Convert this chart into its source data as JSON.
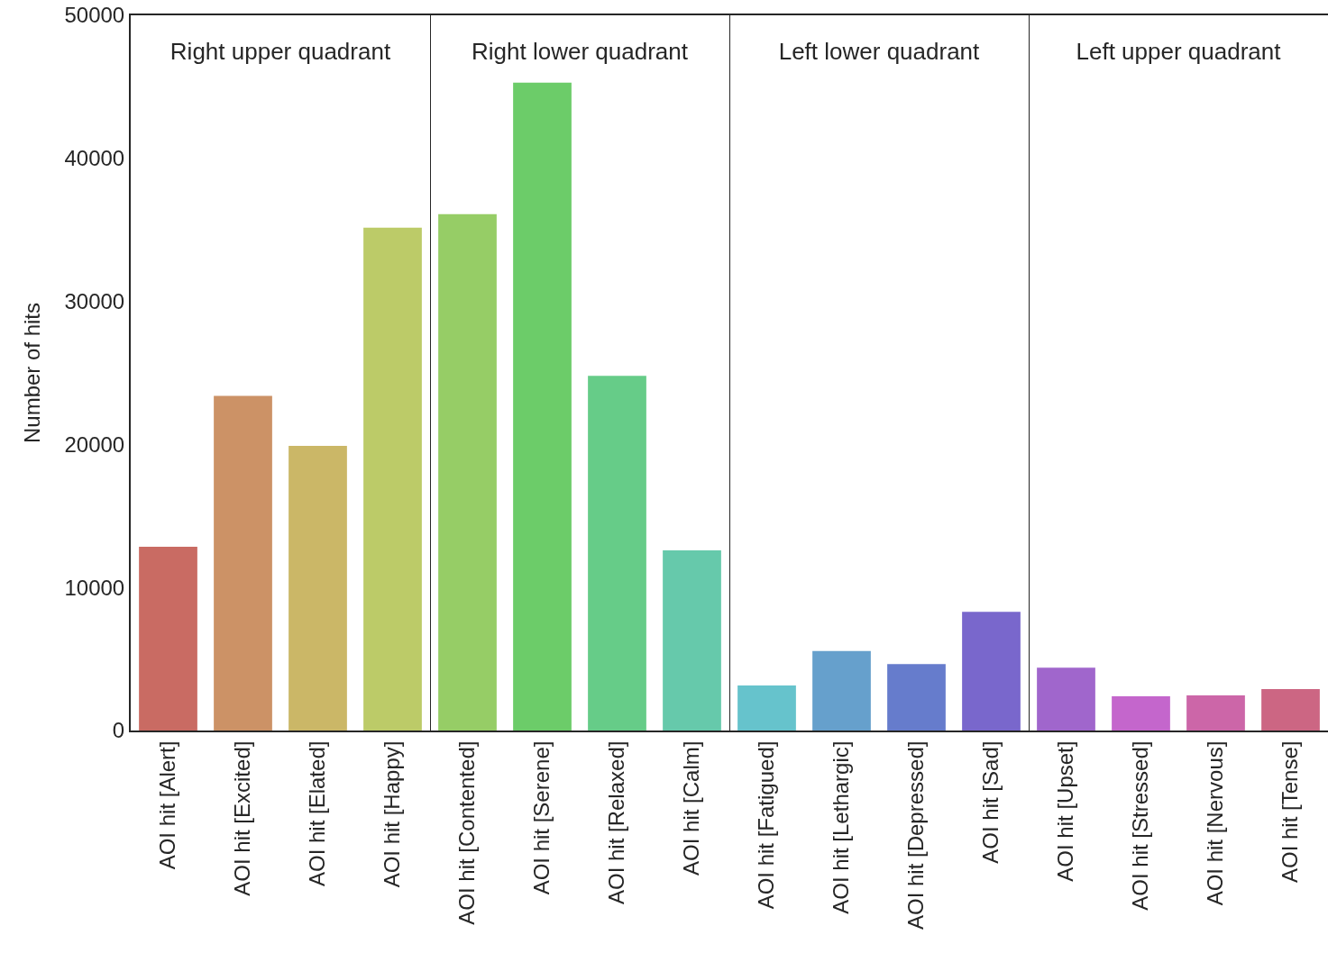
{
  "chart_data": [
    {
      "type": "bar",
      "title": "Right upper quadrant",
      "ylabel": "Number of hits",
      "categories": [
        "AOI hit [Alert]",
        "AOI hit [Excited]",
        "AOI hit [Elated]",
        "AOI hit [Happy]"
      ],
      "values": [
        12850,
        23400,
        19900,
        35150
      ],
      "colors": [
        "#c96b63",
        "#cc9266",
        "#cbb767",
        "#bccb68"
      ],
      "ylim": [
        0,
        50000
      ],
      "yticks": [
        0,
        10000,
        20000,
        30000,
        40000,
        50000
      ]
    },
    {
      "type": "bar",
      "title": "Right lower quadrant",
      "categories": [
        "AOI hit [Contented]",
        "AOI hit [Serene]",
        "AOI hit [Relaxed]",
        "AOI hit [Calm]"
      ],
      "values": [
        36100,
        45300,
        24800,
        12600
      ],
      "colors": [
        "#96cd66",
        "#6ccc69",
        "#66cc88",
        "#66c9ab"
      ],
      "ylim": [
        0,
        50000
      ],
      "yticks": [
        0,
        10000,
        20000,
        30000,
        40000,
        50000
      ],
      "tick_labels": "x"
    },
    {
      "type": "bar",
      "title": "Left lower quadrant",
      "categories": [
        "AOI hit [Fatigued]",
        "AOI hit [Lethargic]",
        "AOI hit [Depressed]",
        "AOI hit [Sad]"
      ],
      "values": [
        3150,
        5550,
        4650,
        8300
      ],
      "colors": [
        "#66c3cc",
        "#66a0cc",
        "#667ccc",
        "#7967cc"
      ],
      "ylim": [
        0,
        50000
      ],
      "yticks": [
        0,
        10000,
        20000,
        30000,
        40000,
        50000
      ],
      "tick_labels": "x"
    },
    {
      "type": "bar",
      "title": "Left upper quadrant",
      "categories": [
        "AOI hit [Upset]",
        "AOI hit [Stressed]",
        "AOI hit [Nervous]",
        "AOI hit [Tense]"
      ],
      "values": [
        4400,
        2400,
        2450,
        2900
      ],
      "colors": [
        "#a066cc",
        "#c466cc",
        "#cc66a8",
        "#cc6683"
      ],
      "ylim": [
        0,
        50000
      ],
      "yticks": [
        0,
        10000,
        20000,
        30000,
        40000,
        50000
      ],
      "tick_labels": "x"
    }
  ]
}
